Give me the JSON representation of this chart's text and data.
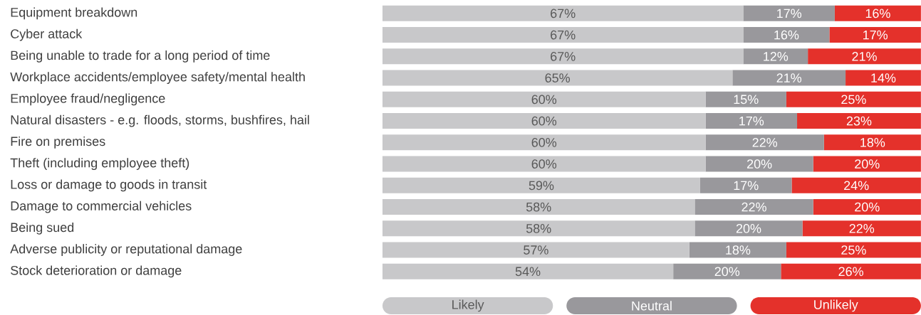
{
  "chart_data": {
    "type": "bar",
    "orientation": "horizontal",
    "stacked": true,
    "legend": "bottom",
    "categories": [
      "Equipment breakdown",
      "Cyber attack",
      "Being unable to trade for a long period of time",
      "Workplace accidents/employee safety/mental health",
      "Employee fraud/negligence",
      "Natural disasters - e.g. floods, storms, bushfires, hail",
      "Fire on premises",
      "Theft (including employee theft)",
      "Loss or damage to goods in transit",
      "Damage to commercial vehicles",
      "Being sued",
      "Adverse publicity or reputational damage",
      "Stock deterioration or damage"
    ],
    "series": [
      {
        "name": "Likely",
        "color": "#c8c8ca",
        "values": [
          67,
          67,
          67,
          65,
          60,
          60,
          60,
          60,
          59,
          58,
          58,
          57,
          54
        ],
        "value_labels": [
          "67%",
          "67%",
          "67%",
          "65%",
          "60%",
          "60%",
          "60%",
          "60%",
          "59%",
          "58%",
          "58%",
          "57%",
          "54%"
        ]
      },
      {
        "name": "Neutral",
        "color": "#99989c",
        "values": [
          17,
          16,
          12,
          21,
          15,
          17,
          22,
          20,
          17,
          22,
          20,
          18,
          20
        ],
        "value_labels": [
          "17%",
          "16%",
          "12%",
          "21%",
          "15%",
          "17%",
          "22%",
          "20%",
          "17%",
          "22%",
          "20%",
          "18%",
          "20%"
        ]
      },
      {
        "name": "Unlikely",
        "color": "#e4312b",
        "values": [
          16,
          17,
          21,
          14,
          25,
          23,
          18,
          20,
          24,
          20,
          22,
          25,
          26
        ],
        "value_labels": [
          "16%",
          "17%",
          "21%",
          "14%",
          "25%",
          "23%",
          "18%",
          "20%",
          "24%",
          "20%",
          "22%",
          "25%",
          "26%"
        ]
      }
    ]
  }
}
